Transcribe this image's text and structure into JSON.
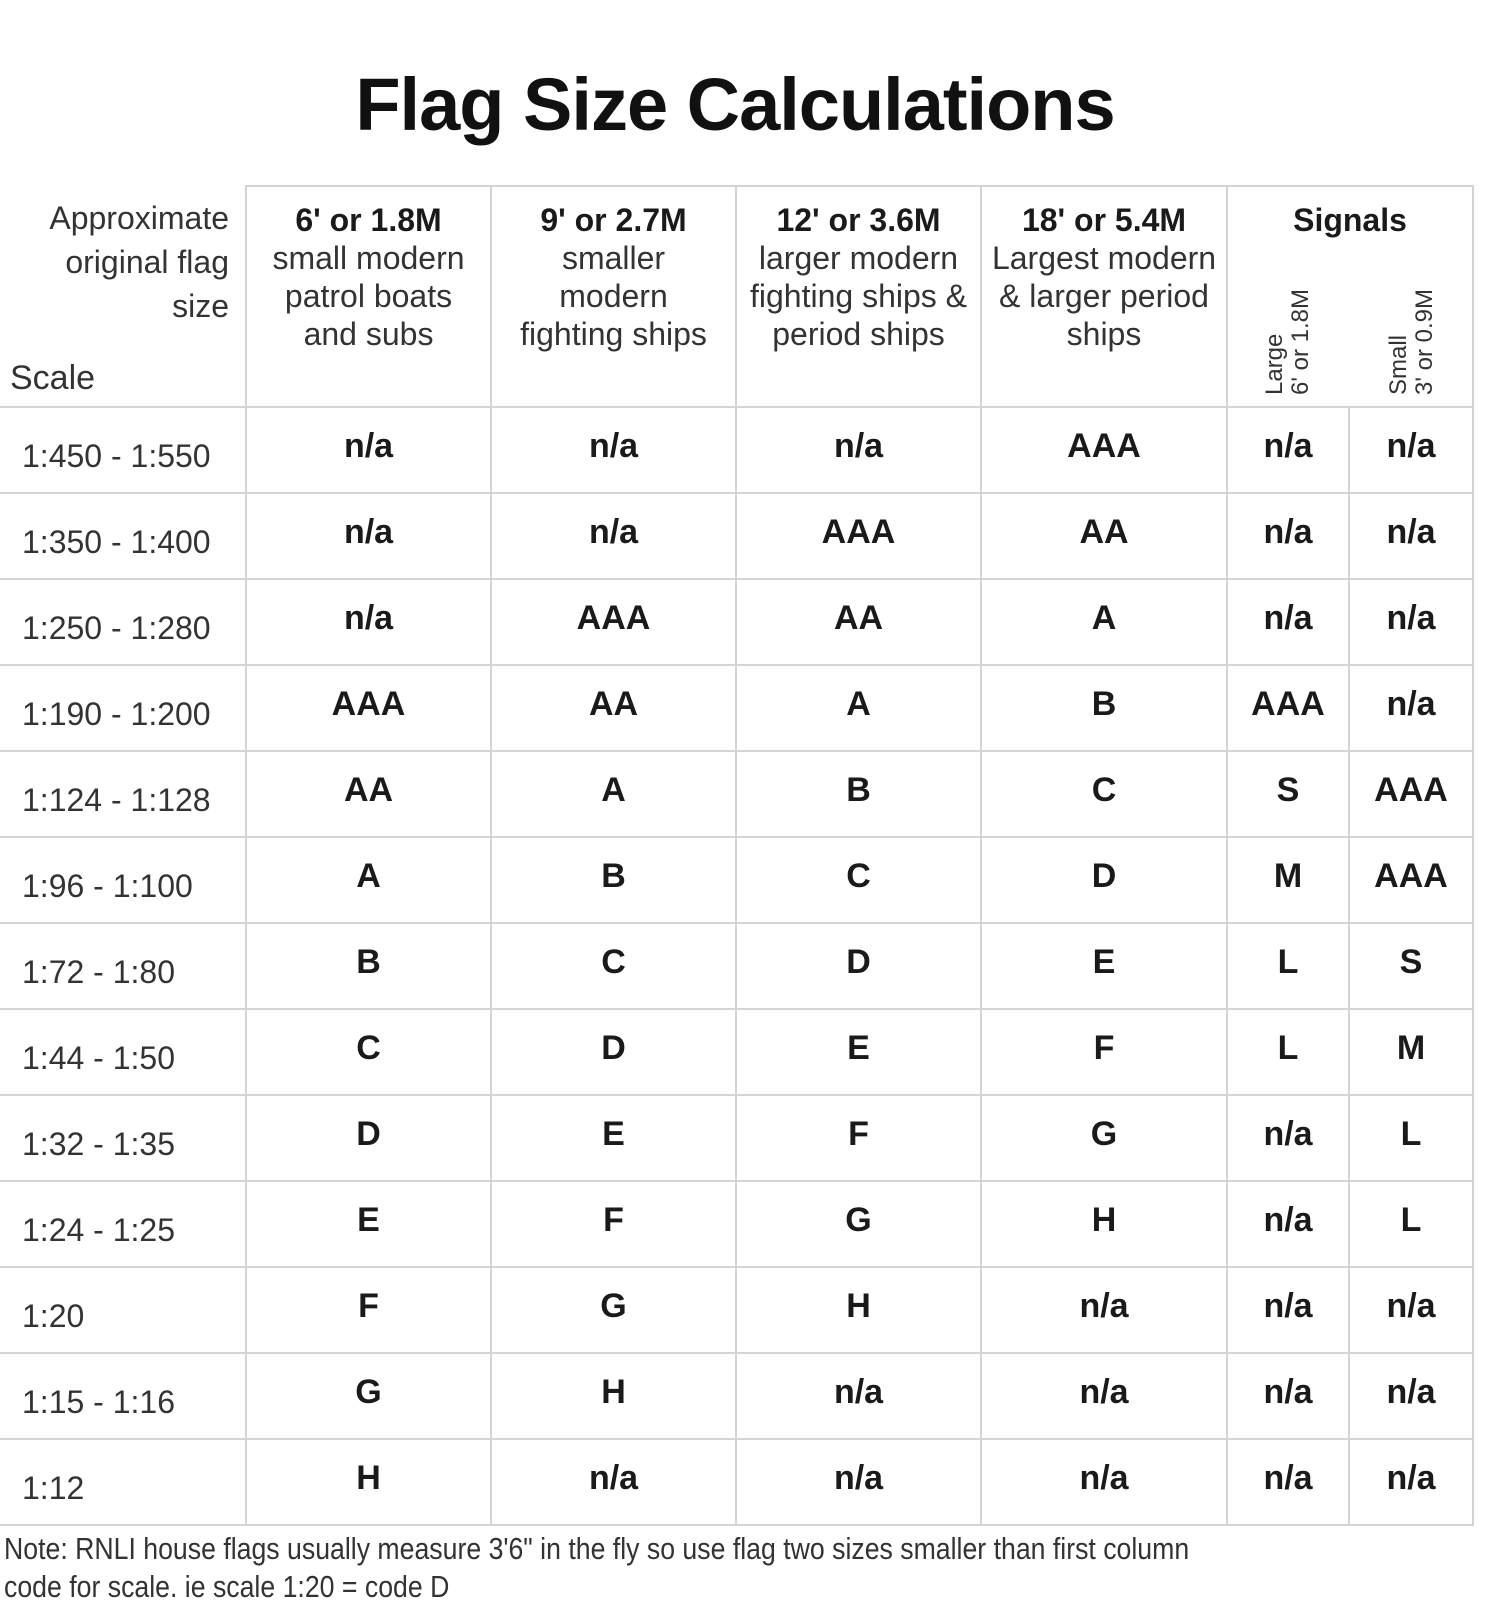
{
  "title": "Flag Size Calculations",
  "header": {
    "corner_label": "Approximate original flag size",
    "scale_label": "Scale",
    "columns": [
      {
        "size": "6' or 1.8M",
        "desc": "small modern patrol boats and subs"
      },
      {
        "size": "9' or 2.7M",
        "desc": "smaller modern fighting ships"
      },
      {
        "size": "12' or 3.6M",
        "desc": "larger modern fighting ships & period ships"
      },
      {
        "size": "18' or 5.4M",
        "desc": "Largest modern & larger period ships"
      }
    ],
    "signals": {
      "label": "Signals",
      "large": {
        "name": "Large",
        "size": "6' or 1.8M"
      },
      "small": {
        "name": "Small",
        "size": "3' or 0.9M"
      }
    }
  },
  "rows": [
    {
      "scale": "1:450 - 1:550",
      "values": [
        "n/a",
        "n/a",
        "n/a",
        "AAA",
        "n/a",
        "n/a"
      ]
    },
    {
      "scale": "1:350 - 1:400",
      "values": [
        "n/a",
        "n/a",
        "AAA",
        "AA",
        "n/a",
        "n/a"
      ]
    },
    {
      "scale": "1:250 - 1:280",
      "values": [
        "n/a",
        "AAA",
        "AA",
        "A",
        "n/a",
        "n/a"
      ]
    },
    {
      "scale": "1:190 - 1:200",
      "values": [
        "AAA",
        "AA",
        "A",
        "B",
        "AAA",
        "n/a"
      ]
    },
    {
      "scale": "1:124 - 1:128",
      "values": [
        "AA",
        "A",
        "B",
        "C",
        "S",
        "AAA"
      ]
    },
    {
      "scale": "1:96 - 1:100",
      "values": [
        "A",
        "B",
        "C",
        "D",
        "M",
        "AAA"
      ]
    },
    {
      "scale": "1:72 - 1:80",
      "values": [
        "B",
        "C",
        "D",
        "E",
        "L",
        "S"
      ]
    },
    {
      "scale": "1:44 - 1:50",
      "values": [
        "C",
        "D",
        "E",
        "F",
        "L",
        "M"
      ]
    },
    {
      "scale": "1:32 - 1:35",
      "values": [
        "D",
        "E",
        "F",
        "G",
        "n/a",
        "L"
      ]
    },
    {
      "scale": "1:24 - 1:25",
      "values": [
        "E",
        "F",
        "G",
        "H",
        "n/a",
        "L"
      ]
    },
    {
      "scale": "1:20",
      "values": [
        "F",
        "G",
        "H",
        "n/a",
        "n/a",
        "n/a"
      ]
    },
    {
      "scale": "1:15 - 1:16",
      "values": [
        "G",
        "H",
        "n/a",
        "n/a",
        "n/a",
        "n/a"
      ]
    },
    {
      "scale": "1:12",
      "values": [
        "H",
        "n/a",
        "n/a",
        "n/a",
        "n/a",
        "n/a"
      ]
    }
  ],
  "note": "Note: RNLI house flags usually measure 3'6\" in the fly so use flag two sizes smaller than first column code for scale.  ie scale 1:20 = code D"
}
